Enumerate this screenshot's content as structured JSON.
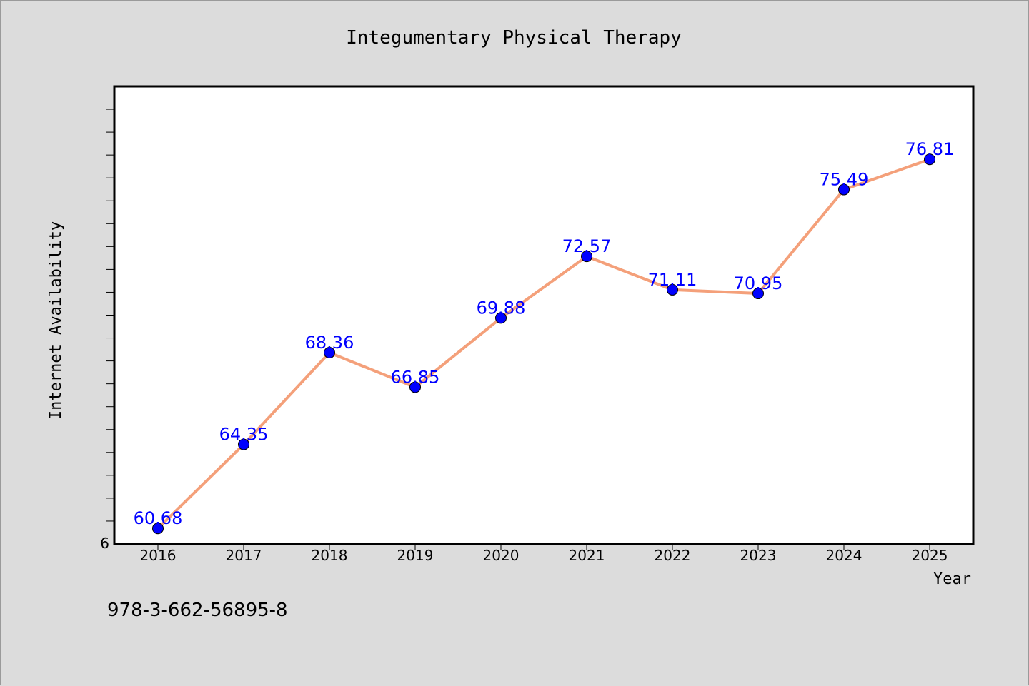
{
  "footer": {
    "isbn": "978-3-662-56895-8"
  },
  "colors": {
    "line": "#f4a07a",
    "marker": "#0000ff",
    "label": "#0000ff",
    "background": "#dcdcdc",
    "plot_bg": "#ffffff"
  },
  "chart_data": {
    "type": "line",
    "title": "Integumentary Physical Therapy",
    "xlabel": "Year",
    "ylabel": "Internet Availability",
    "categories": [
      "2016",
      "2017",
      "2018",
      "2019",
      "2020",
      "2021",
      "2022",
      "2023",
      "2024",
      "2025"
    ],
    "series": [
      {
        "values": [
          60.68,
          64.35,
          68.36,
          66.85,
          69.88,
          72.57,
          71.11,
          70.95,
          75.49,
          76.81
        ],
        "labels": [
          "60.68",
          "64.35",
          "68.36",
          "66.85",
          "69.88",
          "72.57",
          "71.11",
          "70.95",
          "75.49",
          "76.81"
        ]
      }
    ],
    "ylim": [
      60,
      80
    ],
    "y_tick_labels": [
      "6"
    ],
    "grid": false,
    "legend": "none"
  }
}
